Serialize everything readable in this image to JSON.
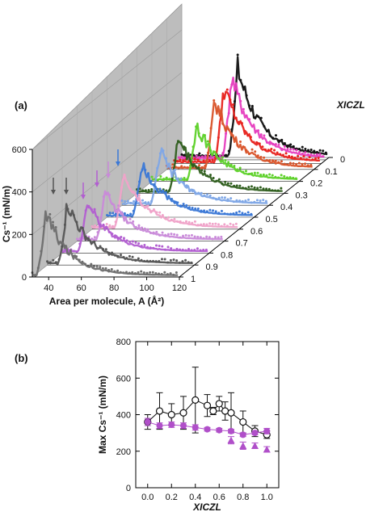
{
  "panel_a_label": "(a)",
  "panel_b_label": "(b)",
  "chart_data": [
    {
      "type": "line",
      "panel": "(a)",
      "style": "3D waterfall of Cs^-1 vs area per molecule for different X_ICZL",
      "xlabel": "Area per molecule, A (Å²)",
      "ylabel": "Cs⁻¹ (mN/m)",
      "zlabel": "XICZL",
      "x_ticks": [
        "40",
        "60",
        "80",
        "100",
        "120"
      ],
      "y_ticks": [
        "0",
        "200",
        "400",
        "600"
      ],
      "z_ticks": [
        "0",
        "0.1",
        "0.2",
        "0.3",
        "0.4",
        "0.5",
        "0.6",
        "0.7",
        "0.8",
        "0.9",
        "1"
      ],
      "xlim": [
        30,
        120
      ],
      "ylim": [
        0,
        600
      ],
      "series": [
        {
          "x_iczl": 1,
          "color": "#6e6e6e",
          "peak_A": 38,
          "peak_Cs": 300
        },
        {
          "x_iczl": 0.9,
          "color": "#555555",
          "peak_A": 42,
          "peak_Cs": 290
        },
        {
          "x_iczl": 0.8,
          "color": "#b25ed1",
          "peak_A": 45,
          "peak_Cs": 240
        },
        {
          "x_iczl": 0.7,
          "color": "#c98ad9",
          "peak_A": 47,
          "peak_Cs": 230
        },
        {
          "x_iczl": 0.6,
          "color": "#f0a3c9",
          "peak_A": 49,
          "peak_Cs": 270
        },
        {
          "x_iczl": 0.5,
          "color": "#3b78d6",
          "peak_A": 51,
          "peak_Cs": 260
        },
        {
          "x_iczl": 0.4,
          "color": "#7fa7e6",
          "peak_A": 53,
          "peak_Cs": 250
        },
        {
          "x_iczl": 0.3,
          "color": "#2f5e1e",
          "peak_A": 55,
          "peak_Cs": 260
        },
        {
          "x_iczl": 0.2,
          "color": "#5ed12a",
          "peak_A": 57,
          "peak_Cs": 270
        },
        {
          "x_iczl": 0.1,
          "color": "#d9542a",
          "peak_A": 59,
          "peak_Cs": 330
        },
        {
          "x_iczl": 0.05,
          "color": "#e8231e",
          "peak_A": 60,
          "peak_Cs": 360
        },
        {
          "x_iczl": 0.02,
          "color": "#e63fbf",
          "peak_A": 62,
          "peak_Cs": 390
        },
        {
          "x_iczl": 0,
          "color": "#111111",
          "peak_A": 64,
          "peak_Cs": 420
        }
      ]
    },
    {
      "type": "scatter",
      "panel": "(b)",
      "xlabel": "XICZL",
      "ylabel": "Max Cs⁻¹ (mN/m)",
      "xlim": [
        -0.1,
        1.1
      ],
      "ylim": [
        0,
        800
      ],
      "x_ticks": [
        "0.0",
        "0.2",
        "0.4",
        "0.6",
        "0.8",
        "1.0"
      ],
      "y_ticks": [
        "0",
        "200",
        "400",
        "600",
        "800"
      ],
      "series": [
        {
          "marker": "open-circle",
          "color": "#111111",
          "x": [
            0.0,
            0.1,
            0.2,
            0.3,
            0.4,
            0.5,
            0.55,
            0.6,
            0.65,
            0.7,
            0.8,
            0.9,
            1.0
          ],
          "y": [
            360,
            420,
            400,
            410,
            480,
            450,
            420,
            460,
            420,
            410,
            360,
            310,
            290
          ],
          "err": [
            40,
            100,
            60,
            90,
            180,
            60,
            20,
            40,
            50,
            110,
            60,
            30,
            20
          ]
        },
        {
          "marker": "filled-circle",
          "color": "#b04fc9",
          "x": [
            0.0,
            0.1,
            0.2,
            0.3,
            0.4,
            0.5,
            0.6,
            0.7,
            0.8,
            0.9,
            1.0
          ],
          "y": [
            360,
            340,
            345,
            340,
            330,
            320,
            315,
            310,
            290,
            300,
            310
          ],
          "err": [
            20,
            15,
            15,
            15,
            15,
            10,
            10,
            10,
            10,
            10,
            15
          ]
        },
        {
          "marker": "filled-triangle",
          "color": "#b04fc9",
          "x": [
            0.7,
            0.8,
            0.9,
            1.0
          ],
          "y": [
            260,
            230,
            230,
            210
          ],
          "err": [
            20,
            20,
            15,
            15
          ]
        }
      ]
    }
  ]
}
